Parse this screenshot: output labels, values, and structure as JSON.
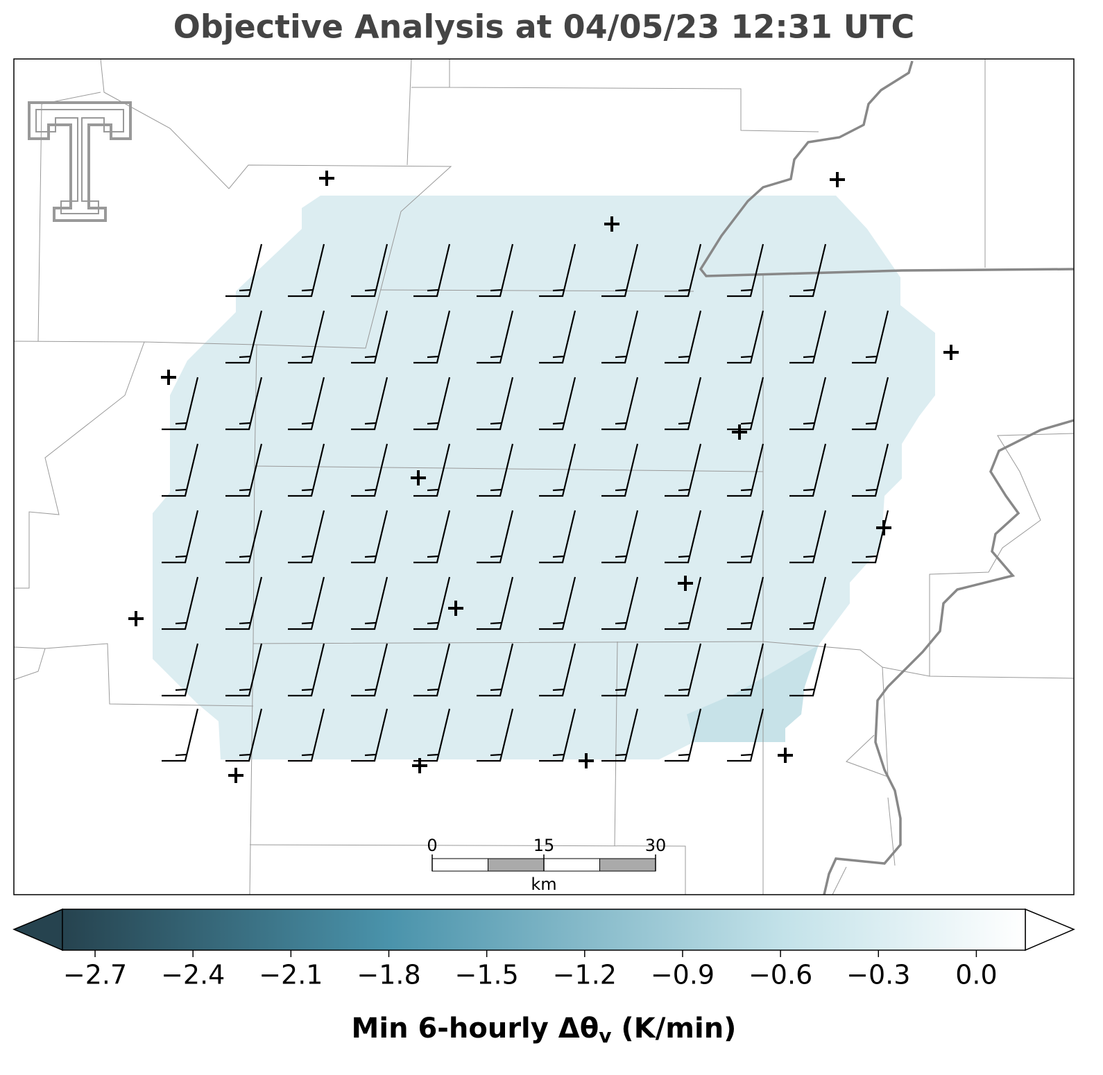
{
  "title": "Objective Analysis at 04/05/23 12:31 UTC",
  "scale_bar": {
    "xlim": [
      0,
      30
    ],
    "ticks": [
      0,
      15,
      30
    ],
    "unit": "km"
  },
  "colorbar": {
    "clim": [
      -2.8,
      0.15
    ],
    "ticks": [
      {
        "value": -2.7,
        "label": "−2.7"
      },
      {
        "value": -2.4,
        "label": "−2.4"
      },
      {
        "value": -2.1,
        "label": "−2.1"
      },
      {
        "value": -1.8,
        "label": "−1.8"
      },
      {
        "value": -1.5,
        "label": "−1.5"
      },
      {
        "value": -1.2,
        "label": "−1.2"
      },
      {
        "value": -0.9,
        "label": "−0.9"
      },
      {
        "value": -0.6,
        "label": "−0.6"
      },
      {
        "value": -0.3,
        "label": "−0.3"
      },
      {
        "value": 0.0,
        "label": "0.0"
      }
    ],
    "label": "Min 6-hourly Δθ",
    "label_subscript": "v",
    "label_suffix": " (K/min)"
  }
}
